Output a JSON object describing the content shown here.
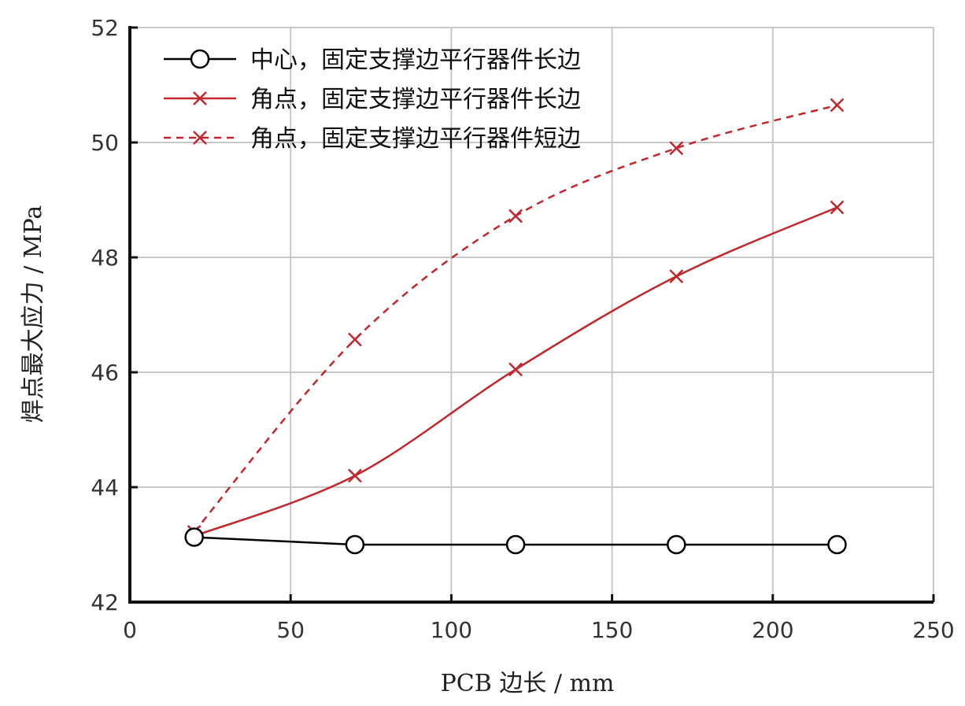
{
  "chart_data": {
    "type": "line",
    "xlabel": "PCB 边长 / mm",
    "ylabel": "焊点最大应力 / MPa",
    "xlim": [
      0,
      250
    ],
    "ylim": [
      42,
      52
    ],
    "xticks": [
      0,
      50,
      100,
      150,
      200,
      250
    ],
    "yticks": [
      42,
      44,
      46,
      48,
      50,
      52
    ],
    "grid": true,
    "legend_position": "top-left",
    "x": [
      20,
      70,
      120,
      170,
      220
    ],
    "series": [
      {
        "name": "中心，固定支撑边平行器件长边",
        "values": [
          43.13,
          43.0,
          43.0,
          43.0,
          43.0
        ],
        "color": "#000000",
        "marker": "circle",
        "line_style": "solid"
      },
      {
        "name": "角点，固定支撑边平行器件长边",
        "values": [
          43.15,
          44.2,
          46.05,
          47.67,
          48.87
        ],
        "color": "#c0282d",
        "marker": "x",
        "line_style": "solid"
      },
      {
        "name": "角点，固定支撑边平行器件短边",
        "values": [
          43.22,
          46.57,
          48.72,
          49.9,
          50.65
        ],
        "color": "#c0282d",
        "marker": "x",
        "line_style": "dashed"
      }
    ]
  }
}
